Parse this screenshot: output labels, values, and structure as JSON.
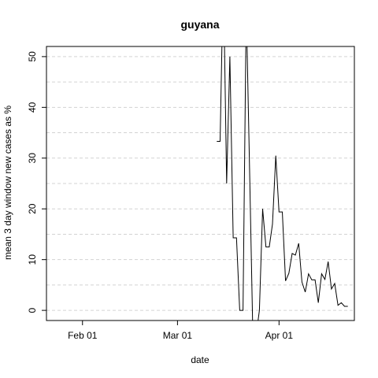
{
  "chart_data": {
    "type": "line",
    "title": "guyana",
    "xlabel": "date",
    "ylabel": "mean  3  day window new cases as %",
    "xlim": [
      "2020-01-21",
      "2020-04-24"
    ],
    "ylim": [
      -2,
      52
    ],
    "x_ticks": [
      {
        "date": "2020-02-01",
        "label": "Feb 01"
      },
      {
        "date": "2020-03-01",
        "label": "Mar 01"
      },
      {
        "date": "2020-04-01",
        "label": "Apr 01"
      }
    ],
    "y_ticks": [
      0,
      10,
      20,
      30,
      40,
      50
    ],
    "grid": {
      "horizontal": true,
      "style": "dashed",
      "color": "#d3d3d3",
      "values": [
        0,
        5,
        10,
        15,
        20,
        25,
        30,
        35,
        40,
        45,
        50
      ]
    },
    "line_color": "#000000",
    "series": [
      {
        "x": [
          "2020-03-13",
          "2020-03-14",
          "2020-03-15",
          "2020-03-16",
          "2020-03-17",
          "2020-03-18",
          "2020-03-19",
          "2020-03-20",
          "2020-03-21",
          "2020-03-22",
          "2020-03-23",
          "2020-03-24",
          "2020-03-25",
          "2020-03-26",
          "2020-03-27",
          "2020-03-28",
          "2020-03-29",
          "2020-03-30",
          "2020-03-31",
          "2020-04-01",
          "2020-04-02",
          "2020-04-03",
          "2020-04-04",
          "2020-04-05",
          "2020-04-06",
          "2020-04-07",
          "2020-04-08",
          "2020-04-09",
          "2020-04-10",
          "2020-04-11",
          "2020-04-12",
          "2020-04-13",
          "2020-04-14",
          "2020-04-15",
          "2020-04-16",
          "2020-04-17",
          "2020-04-18",
          "2020-04-19",
          "2020-04-20",
          "2020-04-21",
          "2020-04-22"
        ],
        "y": [
          33.3,
          33.3,
          66.7,
          25,
          50,
          14.3,
          14.3,
          0,
          0,
          60,
          28,
          -5,
          -5,
          0,
          20,
          12.5,
          12.5,
          17,
          30.5,
          19.4,
          19.4,
          5.8,
          7.3,
          11.2,
          10.9,
          13.2,
          5.6,
          3.6,
          7.2,
          6,
          6,
          1.5,
          7.2,
          6.1,
          9.6,
          4.2,
          5.3,
          1,
          1.5,
          0.8,
          0.8
        ]
      }
    ]
  }
}
